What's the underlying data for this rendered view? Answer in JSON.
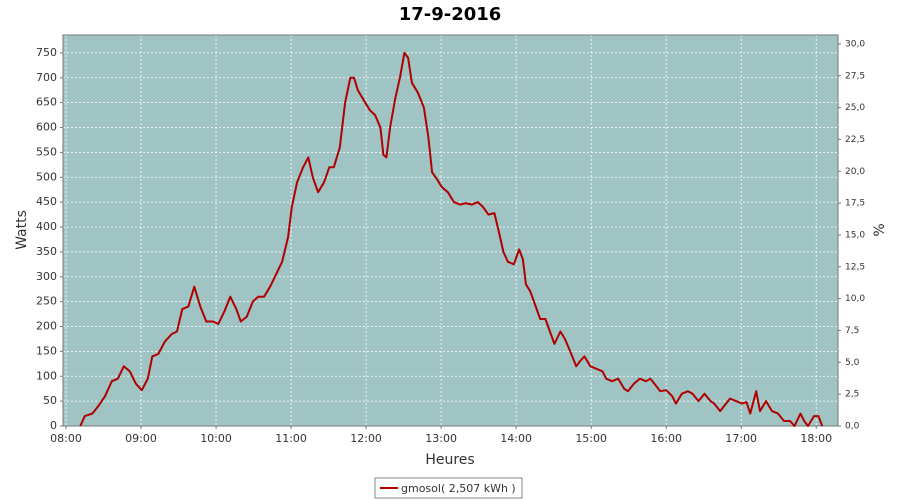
{
  "chart_data": {
    "type": "line",
    "title": "17-9-2016",
    "x_label": "Heures",
    "y_label": "Watts",
    "y2_label": "%",
    "x": [
      8.19,
      8.25,
      8.35,
      8.43,
      8.52,
      8.61,
      8.69,
      8.77,
      8.85,
      8.93,
      9.01,
      9.09,
      9.15,
      9.23,
      9.32,
      9.41,
      9.48,
      9.55,
      9.63,
      9.71,
      9.79,
      9.87,
      9.96,
      10.03,
      10.11,
      10.19,
      10.27,
      10.33,
      10.41,
      10.49,
      10.56,
      10.64,
      10.72,
      10.8,
      10.88,
      10.96,
      11.01,
      11.08,
      11.16,
      11.23,
      11.29,
      11.36,
      11.44,
      11.51,
      11.57,
      11.65,
      11.72,
      11.79,
      11.84,
      11.89,
      11.97,
      12.05,
      12.12,
      12.19,
      12.23,
      12.27,
      12.32,
      12.39,
      12.45,
      12.51,
      12.56,
      12.61,
      12.69,
      12.77,
      12.83,
      12.88,
      12.95,
      13.01,
      13.09,
      13.17,
      13.25,
      13.33,
      13.41,
      13.49,
      13.56,
      13.63,
      13.71,
      13.77,
      13.83,
      13.89,
      13.97,
      14.04,
      14.09,
      14.13,
      14.19,
      14.25,
      14.32,
      14.39,
      14.45,
      14.51,
      14.59,
      14.65,
      14.72,
      14.8,
      14.85,
      14.91,
      14.99,
      15.07,
      15.15,
      15.2,
      15.28,
      15.36,
      15.44,
      15.49,
      15.57,
      15.65,
      15.73,
      15.79,
      15.87,
      15.92,
      16.0,
      16.08,
      16.13,
      16.21,
      16.29,
      16.35,
      16.43,
      16.51,
      16.59,
      16.64,
      16.72,
      16.77,
      16.85,
      16.93,
      17.01,
      17.07,
      17.12,
      17.2,
      17.25,
      17.33,
      17.41,
      17.49,
      17.57,
      17.65,
      17.71,
      17.79,
      17.84,
      17.89,
      17.97,
      18.03,
      18.08
    ],
    "series": [
      {
        "name": "gmosol( 2,507 kWh )",
        "color": "#b00000",
        "values": [
          0,
          20,
          25,
          40,
          60,
          90,
          95,
          120,
          110,
          85,
          72,
          95,
          140,
          145,
          170,
          185,
          190,
          235,
          240,
          280,
          240,
          210,
          210,
          205,
          230,
          260,
          235,
          210,
          220,
          250,
          260,
          260,
          280,
          305,
          330,
          380,
          440,
          490,
          520,
          540,
          500,
          470,
          490,
          520,
          520,
          560,
          650,
          700,
          700,
          675,
          655,
          635,
          625,
          600,
          545,
          540,
          600,
          660,
          700,
          750,
          740,
          690,
          670,
          640,
          580,
          510,
          495,
          480,
          470,
          450,
          445,
          448,
          445,
          450,
          440,
          425,
          428,
          390,
          350,
          330,
          325,
          355,
          335,
          285,
          270,
          245,
          215,
          215,
          190,
          165,
          190,
          175,
          150,
          120,
          130,
          140,
          120,
          115,
          110,
          95,
          90,
          95,
          75,
          70,
          85,
          95,
          90,
          95,
          80,
          70,
          72,
          60,
          45,
          65,
          70,
          65,
          50,
          65,
          50,
          45,
          30,
          40,
          55,
          50,
          45,
          48,
          25,
          70,
          30,
          50,
          30,
          25,
          10,
          10,
          0,
          25,
          10,
          0,
          20,
          20,
          0
        ]
      }
    ],
    "xlim": [
      7.96,
      18.29
    ],
    "xticks": [
      {
        "value": 8,
        "label": "08:00"
      },
      {
        "value": 9,
        "label": "09:00"
      },
      {
        "value": 10,
        "label": "10:00"
      },
      {
        "value": 11,
        "label": "11:00"
      },
      {
        "value": 12,
        "label": "12:00"
      },
      {
        "value": 13,
        "label": "13:00"
      },
      {
        "value": 14,
        "label": "14:00"
      },
      {
        "value": 15,
        "label": "15:00"
      },
      {
        "value": 16,
        "label": "16:00"
      },
      {
        "value": 17,
        "label": "17:00"
      },
      {
        "value": 18,
        "label": "18:00"
      }
    ],
    "ylim": [
      0,
      786
    ],
    "yticks": [
      0,
      50,
      100,
      150,
      200,
      250,
      300,
      350,
      400,
      450,
      500,
      550,
      600,
      650,
      700,
      750
    ],
    "y2lim": [
      0,
      30.7
    ],
    "y2ticks": [
      {
        "value": 0,
        "label": "0,0"
      },
      {
        "value": 2.5,
        "label": "2,5"
      },
      {
        "value": 5,
        "label": "5,0"
      },
      {
        "value": 7.5,
        "label": "7,5"
      },
      {
        "value": 10,
        "label": "10,0"
      },
      {
        "value": 12.5,
        "label": "12,5"
      },
      {
        "value": 15,
        "label": "15,0"
      },
      {
        "value": 17.5,
        "label": "17,5"
      },
      {
        "value": 20,
        "label": "20,0"
      },
      {
        "value": 22.5,
        "label": "22,5"
      },
      {
        "value": 25,
        "label": "25,0"
      },
      {
        "value": 27.5,
        "label": "27,5"
      },
      {
        "value": 30,
        "label": "30,0"
      }
    ],
    "grid": true,
    "background": "#a0c4c4"
  }
}
